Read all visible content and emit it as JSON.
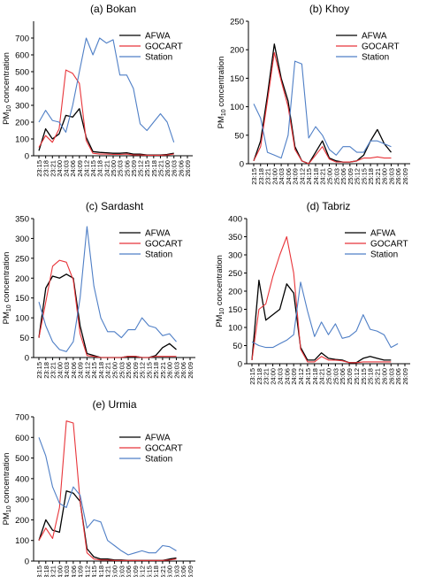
{
  "series_colors": {
    "AFWA": "#000000",
    "GOCART": "#e8353a",
    "Station": "#4f7fc6"
  },
  "chart_data": [
    {
      "type": "line",
      "title": "(a) Bokan",
      "ylabel": "PM10 concentration",
      "ylim": [
        0,
        800
      ],
      "yticks": [
        "0",
        "100",
        "200",
        "300",
        "400",
        "500",
        "600",
        "700"
      ],
      "x_ticks": [
        "23:15",
        "23:18",
        "23:21",
        "24:00",
        "24:03",
        "24:06",
        "24:09",
        "24:12",
        "24:15",
        "24:18",
        "24:21",
        "25:00",
        "25:03",
        "25:06",
        "25:09",
        "25:12",
        "25:15",
        "25:18",
        "25:21",
        "26:00",
        "26:03",
        "26:06",
        "26:09"
      ],
      "legend": [
        "AFWA",
        "GOCART",
        "Station"
      ],
      "legend_position": "top-right",
      "series": [
        {
          "name": "AFWA",
          "values": [
            30,
            160,
            100,
            130,
            240,
            230,
            280,
            110,
            25,
            20,
            18,
            15,
            15,
            18,
            10,
            10,
            5,
            5,
            5,
            8,
            15,
            null,
            null
          ]
        },
        {
          "name": "GOCART",
          "values": [
            50,
            120,
            80,
            160,
            510,
            490,
            430,
            90,
            15,
            10,
            10,
            8,
            8,
            10,
            5,
            5,
            3,
            3,
            3,
            5,
            10,
            null,
            null
          ]
        },
        {
          "name": "Station",
          "values": [
            200,
            270,
            210,
            200,
            140,
            300,
            500,
            700,
            600,
            700,
            670,
            690,
            480,
            480,
            400,
            190,
            150,
            200,
            250,
            200,
            80,
            null,
            null
          ]
        }
      ]
    },
    {
      "type": "line",
      "title": "(b) Khoy",
      "ylabel": "PM10 concentration",
      "ylim": [
        0,
        250
      ],
      "yticks": [
        "0",
        "50",
        "100",
        "150",
        "200",
        "250"
      ],
      "x_ticks": [
        "23:15",
        "23:18",
        "23:21",
        "24:00",
        "24:03",
        "24:06",
        "24:09",
        "24:12",
        "24:15",
        "24:18",
        "24:21",
        "25:00",
        "25:03",
        "25:06",
        "25:09",
        "25:12",
        "25:15",
        "25:18",
        "25:21",
        "26:00",
        "26:03",
        "26:06",
        "26:09"
      ],
      "legend": [
        "AFWA",
        "GOCART",
        "Station"
      ],
      "legend_position": "top-right",
      "series": [
        {
          "name": "AFWA",
          "values": [
            5,
            40,
            120,
            210,
            150,
            110,
            30,
            5,
            0,
            20,
            40,
            10,
            5,
            3,
            3,
            5,
            15,
            40,
            60,
            35,
            20,
            null,
            null
          ]
        },
        {
          "name": "GOCART",
          "values": [
            5,
            30,
            110,
            195,
            145,
            100,
            25,
            5,
            0,
            15,
            30,
            8,
            3,
            3,
            3,
            5,
            10,
            10,
            12,
            10,
            10,
            null,
            null
          ]
        },
        {
          "name": "Station",
          "values": [
            105,
            80,
            20,
            15,
            10,
            50,
            180,
            175,
            45,
            65,
            50,
            25,
            15,
            30,
            30,
            20,
            20,
            40,
            40,
            35,
            30,
            null,
            null
          ]
        }
      ]
    },
    {
      "type": "line",
      "title": "(c) Sardasht",
      "ylabel": "PM10 concentration",
      "ylim": [
        0,
        350
      ],
      "yticks": [
        "0",
        "50",
        "100",
        "150",
        "200",
        "250",
        "300",
        "350"
      ],
      "x_ticks": [
        "23:15",
        "23:18",
        "23:21",
        "24:00",
        "24:03",
        "24:06",
        "24:09",
        "24:12",
        "24:15",
        "24:18",
        "24:21",
        "25:00",
        "25:03",
        "25:06",
        "25:09",
        "25:12",
        "25:15",
        "25:18",
        "25:21",
        "26:00",
        "26:03",
        "26:06",
        "26:09"
      ],
      "legend": [
        "AFWA",
        "GOCART",
        "Station"
      ],
      "legend_position": "top-right",
      "series": [
        {
          "name": "AFWA",
          "values": [
            50,
            175,
            205,
            200,
            210,
            200,
            80,
            10,
            5,
            0,
            0,
            0,
            0,
            3,
            3,
            0,
            0,
            5,
            25,
            35,
            20,
            null,
            null
          ]
        },
        {
          "name": "GOCART",
          "values": [
            50,
            140,
            230,
            245,
            240,
            195,
            60,
            5,
            3,
            0,
            0,
            0,
            0,
            3,
            3,
            0,
            0,
            3,
            3,
            3,
            3,
            null,
            null
          ]
        },
        {
          "name": "Station",
          "values": [
            140,
            80,
            40,
            20,
            15,
            40,
            150,
            330,
            180,
            100,
            65,
            65,
            50,
            70,
            70,
            100,
            80,
            75,
            55,
            60,
            40,
            null,
            null
          ]
        }
      ]
    },
    {
      "type": "line",
      "title": "(d) Tabriz",
      "ylabel": "PM10 concentration",
      "ylim": [
        0,
        400
      ],
      "yticks": [
        "0",
        "50",
        "100",
        "150",
        "200",
        "250",
        "300",
        "350",
        "400"
      ],
      "x_ticks": [
        "23:15",
        "23:18",
        "23:21",
        "24:00",
        "24:03",
        "24:06",
        "24:09",
        "24:12",
        "24:15",
        "24:18",
        "24:21",
        "25:00",
        "25:03",
        "25:06",
        "25:09",
        "25:12",
        "25:15",
        "25:18",
        "25:21",
        "26:00",
        "26:03",
        "26:06",
        "26:09"
      ],
      "legend": [
        "AFWA",
        "GOCART",
        "Station"
      ],
      "legend_position": "top-right",
      "series": [
        {
          "name": "AFWA",
          "values": [
            10,
            230,
            120,
            135,
            150,
            220,
            195,
            45,
            10,
            10,
            30,
            15,
            12,
            10,
            3,
            3,
            15,
            20,
            15,
            10,
            10,
            null,
            null
          ]
        },
        {
          "name": "GOCART",
          "values": [
            10,
            150,
            165,
            240,
            300,
            350,
            250,
            40,
            5,
            5,
            20,
            10,
            10,
            8,
            3,
            3,
            5,
            5,
            5,
            5,
            5,
            null,
            null
          ]
        },
        {
          "name": "Station",
          "values": [
            60,
            50,
            45,
            45,
            55,
            65,
            80,
            225,
            145,
            75,
            115,
            80,
            110,
            70,
            75,
            90,
            135,
            95,
            90,
            80,
            45,
            55,
            null
          ]
        }
      ]
    },
    {
      "type": "line",
      "title": "(e) Urmia",
      "ylabel": "PM10 concentration",
      "ylim": [
        0,
        700
      ],
      "yticks": [
        "0",
        "100",
        "200",
        "300",
        "400",
        "500",
        "600",
        "700"
      ],
      "x_ticks": [
        "23:15",
        "23:18",
        "23:21",
        "24:00",
        "24:03",
        "24:06",
        "24:09",
        "24:12",
        "24:15",
        "24:18",
        "24:21",
        "25:00",
        "25:03",
        "25:06",
        "25:09",
        "25:12",
        "25:15",
        "25:18",
        "25:21",
        "26:00",
        "26:03",
        "26:06",
        "26:09"
      ],
      "legend": [
        "AFWA",
        "GOCART",
        "Station"
      ],
      "legend_position": "top-right",
      "series": [
        {
          "name": "AFWA",
          "values": [
            100,
            200,
            150,
            140,
            340,
            330,
            290,
            60,
            20,
            10,
            10,
            5,
            5,
            3,
            3,
            3,
            3,
            3,
            3,
            10,
            15,
            null,
            null
          ]
        },
        {
          "name": "GOCART",
          "values": [
            100,
            160,
            110,
            260,
            680,
            670,
            290,
            40,
            10,
            5,
            5,
            3,
            3,
            3,
            3,
            3,
            3,
            3,
            3,
            5,
            10,
            null,
            null
          ]
        },
        {
          "name": "Station",
          "values": [
            600,
            510,
            360,
            280,
            260,
            360,
            320,
            160,
            200,
            190,
            100,
            75,
            50,
            30,
            40,
            50,
            40,
            40,
            75,
            70,
            50,
            null,
            null
          ]
        }
      ]
    }
  ]
}
